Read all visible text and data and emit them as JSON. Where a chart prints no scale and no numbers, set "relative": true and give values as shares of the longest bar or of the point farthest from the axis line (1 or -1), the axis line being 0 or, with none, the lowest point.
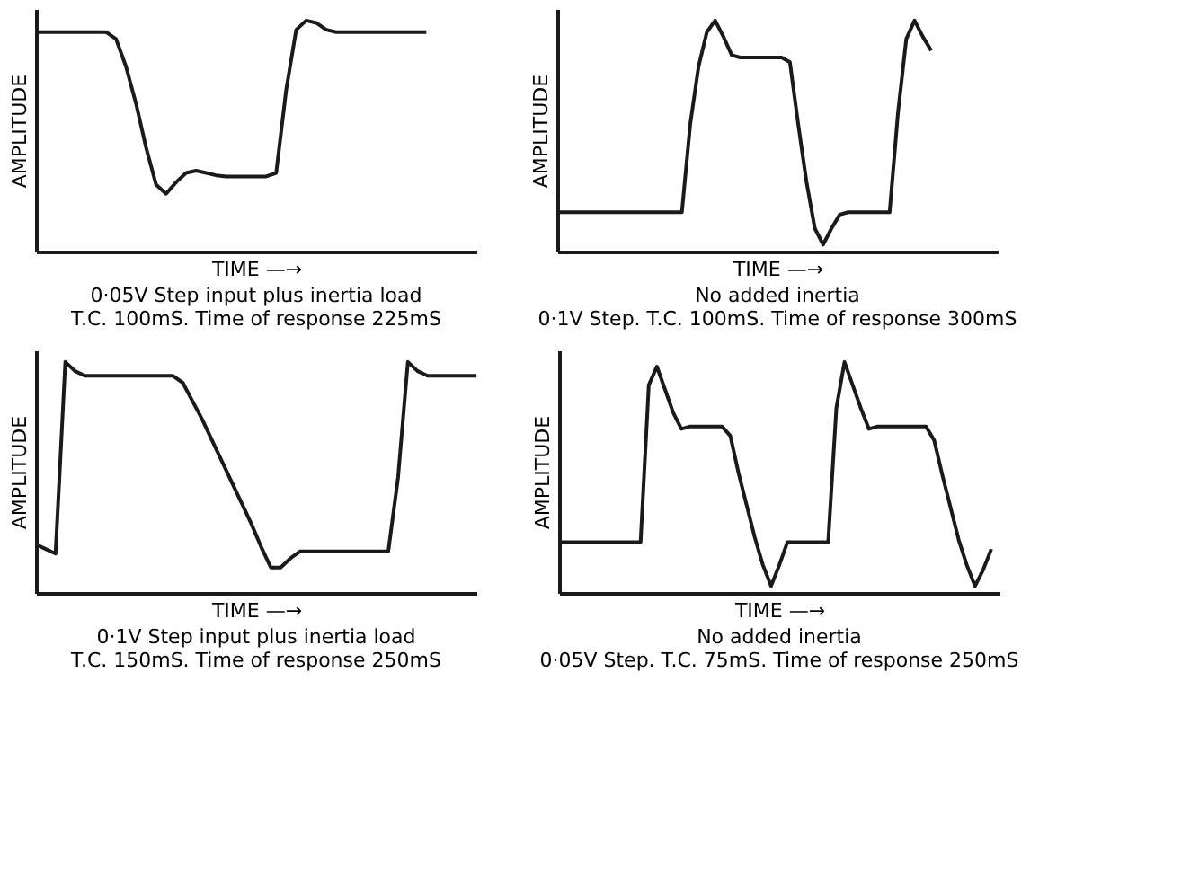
{
  "chart_data": [
    {
      "type": "line",
      "relative": true,
      "color": "#1a1a1a",
      "line_style": "solid",
      "tick_labels": false,
      "xlabel": "TIME —→",
      "ylabel": "AMPLITUDE",
      "annotations": [
        "0·05V Step input plus inertia load",
        "T.C. 100mS. Time of response 225mS"
      ],
      "categories": [
        null,
        null,
        null,
        null,
        null,
        null,
        null,
        null,
        null,
        null,
        null,
        null,
        null,
        null,
        null,
        null,
        null,
        null,
        null,
        null,
        null,
        null,
        null,
        null,
        null,
        null,
        null,
        null,
        null,
        null,
        null,
        null,
        null,
        null,
        null,
        null,
        null,
        null,
        null,
        null,
        null,
        null,
        null,
        null,
        null
      ],
      "values": [
        0.95,
        0.95,
        0.95,
        0.95,
        0.95,
        0.95,
        0.95,
        0.95,
        0.92,
        0.8,
        0.64,
        0.45,
        0.29,
        0.25,
        0.3,
        0.34,
        0.35,
        0.34,
        0.33,
        0.325,
        0.325,
        0.325,
        0.325,
        0.325,
        0.34,
        0.7,
        0.96,
        1.0,
        0.99,
        0.96,
        0.95,
        0.95,
        0.95,
        0.95,
        0.95,
        0.95,
        0.95,
        0.95,
        0.95,
        0.95,
        null,
        null,
        null,
        null,
        null
      ]
    },
    {
      "type": "line",
      "relative": true,
      "color": "#1a1a1a",
      "line_style": "solid",
      "tick_labels": false,
      "xlabel": "TIME —→",
      "ylabel": "AMPLITUDE",
      "annotations": [
        "No added inertia",
        "0·1V Step. T.C. 100mS. Time of response 300mS"
      ],
      "categories": [
        null,
        null,
        null,
        null,
        null,
        null,
        null,
        null,
        null,
        null,
        null,
        null,
        null,
        null,
        null,
        null,
        null,
        null,
        null,
        null,
        null,
        null,
        null,
        null,
        null,
        null,
        null,
        null,
        null,
        null,
        null,
        null,
        null,
        null,
        null,
        null,
        null,
        null,
        null,
        null,
        null,
        null,
        null,
        null,
        null,
        null,
        null,
        null,
        null,
        null,
        null,
        null,
        null,
        null
      ],
      "values": [
        0.17,
        0.17,
        0.17,
        0.17,
        0.17,
        0.17,
        0.17,
        0.17,
        0.17,
        0.17,
        0.17,
        0.17,
        0.17,
        0.17,
        0.17,
        0.17,
        0.55,
        0.8,
        0.95,
        1.0,
        0.93,
        0.85,
        0.84,
        0.84,
        0.84,
        0.84,
        0.84,
        0.84,
        0.82,
        0.55,
        0.3,
        0.1,
        0.03,
        0.1,
        0.16,
        0.17,
        0.17,
        0.17,
        0.17,
        0.17,
        0.17,
        0.6,
        0.92,
        1.0,
        0.93,
        0.87,
        null,
        null,
        null,
        null,
        null,
        null,
        null,
        null
      ]
    },
    {
      "type": "line",
      "relative": true,
      "color": "#1a1a1a",
      "line_style": "solid",
      "tick_labels": false,
      "xlabel": "TIME —→",
      "ylabel": "AMPLITUDE",
      "annotations": [
        "0·1V Step input plus inertia load",
        "T.C. 150mS. Time of response 250mS"
      ],
      "categories": [
        null,
        null,
        null,
        null,
        null,
        null,
        null,
        null,
        null,
        null,
        null,
        null,
        null,
        null,
        null,
        null,
        null,
        null,
        null,
        null,
        null,
        null,
        null,
        null,
        null,
        null,
        null,
        null,
        null,
        null,
        null,
        null,
        null,
        null,
        null,
        null,
        null,
        null,
        null,
        null,
        null,
        null,
        null,
        null,
        null,
        null
      ],
      "values": [
        0.21,
        0.19,
        0.17,
        1.0,
        0.96,
        0.94,
        0.94,
        0.94,
        0.94,
        0.94,
        0.94,
        0.94,
        0.94,
        0.94,
        0.94,
        0.91,
        0.83,
        0.75,
        0.66,
        0.57,
        0.48,
        0.39,
        0.3,
        0.2,
        0.11,
        0.11,
        0.15,
        0.18,
        0.18,
        0.18,
        0.18,
        0.18,
        0.18,
        0.18,
        0.18,
        0.18,
        0.18,
        0.5,
        1.0,
        0.96,
        0.94,
        0.94,
        0.94,
        0.94,
        0.94,
        0.94
      ]
    },
    {
      "type": "line",
      "relative": true,
      "color": "#1a1a1a",
      "line_style": "solid",
      "tick_labels": false,
      "xlabel": "TIME —→",
      "ylabel": "AMPLITUDE",
      "annotations": [
        "No added inertia",
        "0·05V Step. T.C. 75mS. Time of response 250mS"
      ],
      "categories": [
        null,
        null,
        null,
        null,
        null,
        null,
        null,
        null,
        null,
        null,
        null,
        null,
        null,
        null,
        null,
        null,
        null,
        null,
        null,
        null,
        null,
        null,
        null,
        null,
        null,
        null,
        null,
        null,
        null,
        null,
        null,
        null,
        null,
        null,
        null,
        null,
        null,
        null,
        null,
        null,
        null,
        null,
        null,
        null,
        null,
        null,
        null,
        null,
        null,
        null,
        null,
        null,
        null,
        null,
        null
      ],
      "values": [
        0.22,
        0.22,
        0.22,
        0.22,
        0.22,
        0.22,
        0.22,
        0.22,
        0.22,
        0.22,
        0.22,
        0.9,
        0.98,
        0.88,
        0.78,
        0.71,
        0.72,
        0.72,
        0.72,
        0.72,
        0.72,
        0.68,
        0.52,
        0.38,
        0.24,
        0.12,
        0.03,
        0.12,
        0.22,
        0.22,
        0.22,
        0.22,
        0.22,
        0.22,
        0.8,
        1.0,
        0.9,
        0.8,
        0.71,
        0.72,
        0.72,
        0.72,
        0.72,
        0.72,
        0.72,
        0.72,
        0.66,
        0.51,
        0.37,
        0.23,
        0.12,
        0.03,
        0.1,
        0.19,
        null
      ]
    }
  ]
}
